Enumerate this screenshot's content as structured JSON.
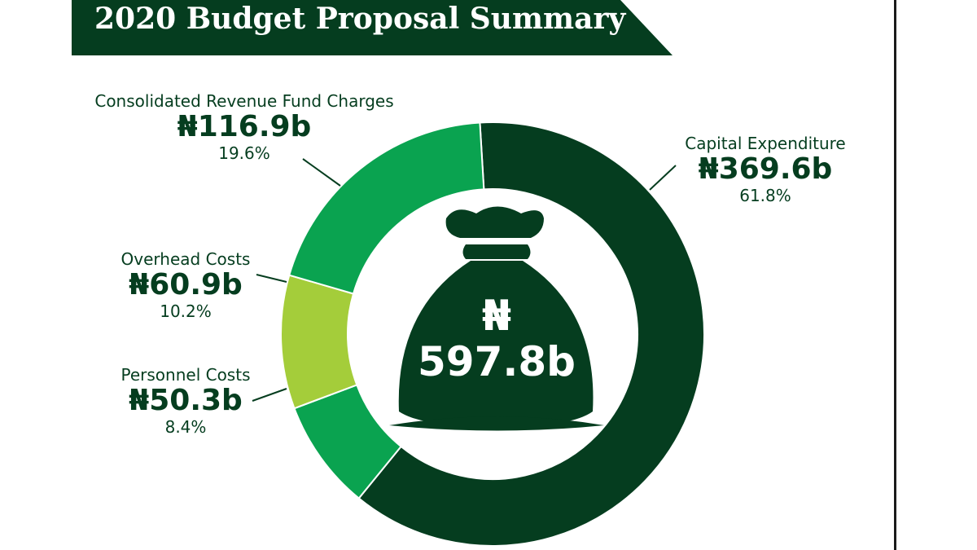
{
  "title": "2020 Budget Proposal Summary",
  "currency_symbol": "₦",
  "total": {
    "symbol": "₦",
    "amount": "597.8b"
  },
  "colors": {
    "banner": "#053d1f",
    "capital": "#053d1f",
    "consolidated": "#0aa350",
    "overhead": "#a4cd3a",
    "personnel": "#0aa350",
    "text": "#053d1f"
  },
  "icon": "money-bag-icon",
  "chart_data": {
    "type": "pie",
    "donut": true,
    "title": "2020 Budget Proposal Summary",
    "total": 597.8,
    "unit": "₦ billion",
    "slices": [
      {
        "name": "Capital Expenditure",
        "value": 369.6,
        "value_label": "₦369.6b",
        "percent": 61.8,
        "percent_label": "61.8%",
        "color": "#053d1f"
      },
      {
        "name": "Personnel Costs",
        "value": 50.3,
        "value_label": "₦50.3b",
        "percent": 8.4,
        "percent_label": "8.4%",
        "color": "#0aa350"
      },
      {
        "name": "Overhead Costs",
        "value": 60.9,
        "value_label": "₦60.9b",
        "percent": 10.2,
        "percent_label": "10.2%",
        "color": "#a4cd3a"
      },
      {
        "name": "Consolidated Revenue Fund Charges",
        "value": 116.9,
        "value_label": "₦116.9b",
        "percent": 19.6,
        "percent_label": "19.6%",
        "color": "#0aa350"
      }
    ]
  },
  "labels": {
    "capital": {
      "name": "Capital Expenditure",
      "amount": "₦369.6b",
      "percent": "61.8%"
    },
    "consolidated": {
      "name": "Consolidated Revenue Fund Charges",
      "amount": "₦116.9b",
      "percent": "19.6%"
    },
    "overhead": {
      "name": "Overhead Costs",
      "amount": "₦60.9b",
      "percent": "10.2%"
    },
    "personnel": {
      "name": "Personnel Costs",
      "amount": "₦50.3b",
      "percent": "8.4%"
    }
  }
}
